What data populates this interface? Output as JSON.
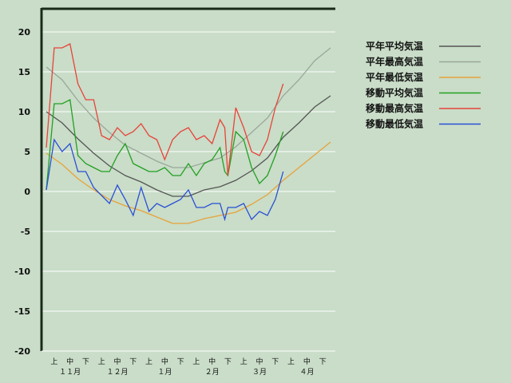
{
  "chart_data": {
    "type": "line",
    "title": "",
    "xlabel": "",
    "ylabel": "",
    "ylim": [
      -20,
      20
    ],
    "yticks": [
      "20",
      "15",
      "10",
      "5",
      "0",
      "-5",
      "-10",
      "-15",
      "-20"
    ],
    "grid": true,
    "legend_position": "top-right",
    "x_sub_labels": [
      "上",
      "中",
      "下",
      "上",
      "中",
      "下",
      "上",
      "中",
      "下",
      "上",
      "中",
      "下",
      "上",
      "中",
      "下",
      "上",
      "中",
      "下"
    ],
    "x_month_labels": [
      "１１月",
      "１２月",
      "１月",
      "２月",
      "３月",
      "４月"
    ],
    "x_count": 18,
    "series": [
      {
        "name": "平年平均気温",
        "color": "#555555",
        "x": [
          0,
          1,
          2,
          3,
          4,
          5,
          6,
          7,
          8,
          9,
          10,
          11,
          12,
          13,
          14,
          15,
          16,
          17,
          18
        ],
        "y": [
          10.0,
          8.6,
          6.6,
          4.8,
          3.2,
          2.0,
          1.2,
          0.2,
          -0.6,
          -0.6,
          0.2,
          0.6,
          1.4,
          2.6,
          4.2,
          6.8,
          8.6,
          10.6,
          12.0
        ]
      },
      {
        "name": "平年最高気温",
        "color": "#9aa79a",
        "x": [
          0,
          1,
          2,
          3,
          4,
          5,
          6,
          7,
          8,
          9,
          10,
          11,
          12,
          13,
          14,
          15,
          16,
          17,
          18
        ],
        "y": [
          15.6,
          14.0,
          11.4,
          9.2,
          7.4,
          5.8,
          4.8,
          3.8,
          3.0,
          3.0,
          3.6,
          4.2,
          5.6,
          7.4,
          9.2,
          12.0,
          14.0,
          16.4,
          18.0
        ]
      },
      {
        "name": "平年最低気温",
        "color": "#e8a23a",
        "x": [
          0,
          1,
          2,
          3,
          4,
          5,
          6,
          7,
          8,
          9,
          10,
          11,
          12,
          13,
          14,
          15,
          16,
          17,
          18
        ],
        "y": [
          4.8,
          3.4,
          1.6,
          0.2,
          -1.0,
          -1.8,
          -2.4,
          -3.2,
          -4.0,
          -4.0,
          -3.4,
          -3.0,
          -2.6,
          -1.6,
          -0.4,
          1.4,
          3.0,
          4.6,
          6.2
        ]
      },
      {
        "name": "移動平均気温",
        "color": "#22a022",
        "x": [
          0,
          0.5,
          1,
          1.5,
          2,
          2.5,
          3,
          3.5,
          4,
          4.5,
          5,
          5.5,
          6,
          6.5,
          7,
          7.5,
          8,
          8.5,
          9,
          9.5,
          10,
          10.5,
          11,
          11.3,
          11.5,
          12,
          12.5,
          13,
          13.5,
          14,
          14.5,
          15
        ],
        "y": [
          0.2,
          11.0,
          11.0,
          11.5,
          4.5,
          3.5,
          3.0,
          2.5,
          2.5,
          4.5,
          6.0,
          3.5,
          3.0,
          2.5,
          2.5,
          3.0,
          2.0,
          2.0,
          3.5,
          2.0,
          3.5,
          4.0,
          5.5,
          2.5,
          2.0,
          7.5,
          6.5,
          3.0,
          1.0,
          2.0,
          4.5,
          7.5
        ]
      },
      {
        "name": "移動最高気温",
        "color": "#e8433a",
        "x": [
          0,
          0.5,
          1,
          1.5,
          2,
          2.5,
          3,
          3.5,
          4,
          4.5,
          5,
          5.5,
          6,
          6.5,
          7,
          7.5,
          8,
          8.5,
          9,
          9.5,
          10,
          10.5,
          11,
          11.3,
          11.5,
          12,
          12.5,
          13,
          13.5,
          14,
          14.5,
          15
        ],
        "y": [
          5.5,
          18.0,
          18.0,
          18.5,
          13.5,
          11.5,
          11.5,
          7.0,
          6.5,
          8.0,
          7.0,
          7.5,
          8.5,
          7.0,
          6.5,
          4.0,
          6.5,
          7.5,
          8.0,
          6.5,
          7.0,
          6.0,
          9.0,
          8.0,
          2.0,
          10.5,
          8.0,
          5.0,
          4.5,
          6.5,
          10.5,
          13.5
        ]
      },
      {
        "name": "移動最低気温",
        "color": "#2a4fd6",
        "x": [
          0,
          0.5,
          1,
          1.5,
          2,
          2.5,
          3,
          3.5,
          4,
          4.5,
          5,
          5.5,
          6,
          6.5,
          7,
          7.5,
          8,
          8.5,
          9,
          9.5,
          10,
          10.5,
          11,
          11.3,
          11.5,
          12,
          12.5,
          13,
          13.5,
          14,
          14.5,
          15
        ],
        "y": [
          0.2,
          6.5,
          5.0,
          6.0,
          2.5,
          2.5,
          0.5,
          -0.5,
          -1.5,
          0.8,
          -1.0,
          -3.0,
          0.5,
          -2.5,
          -1.5,
          -2.0,
          -1.5,
          -1.0,
          0.2,
          -2.0,
          -2.0,
          -1.5,
          -1.5,
          -3.5,
          -2.0,
          -2.0,
          -1.5,
          -3.5,
          -2.5,
          -3.0,
          -1.0,
          2.5
        ]
      }
    ]
  }
}
